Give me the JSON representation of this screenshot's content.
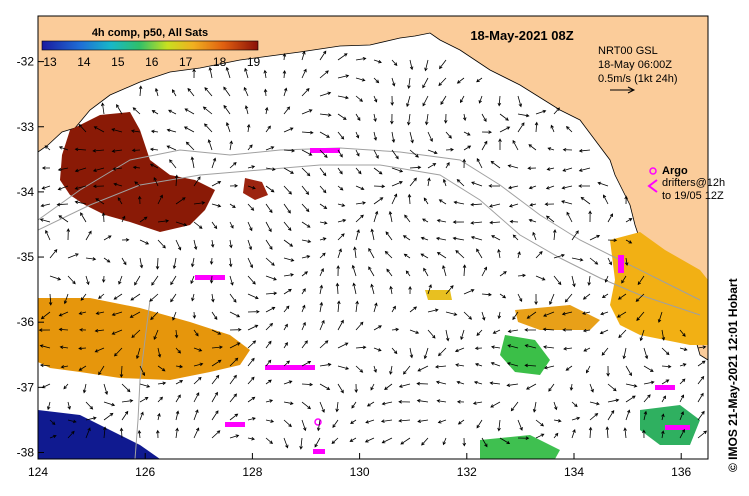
{
  "title": "18-May-2021 08Z",
  "colorbar": {
    "title": "4h comp, p50, All Sats",
    "ticks": [
      "13",
      "14",
      "15",
      "16",
      "17",
      "18",
      "19"
    ]
  },
  "legend": {
    "nrt": "NRT00 GSL",
    "nrt_time": "18-May 06:00Z",
    "scale": "0.5m/s (1kt 24h)",
    "argo": "Argo",
    "drifters": "drifters@12h",
    "drifters_to": "to 19/05 12Z"
  },
  "credit": "© IMOS 21-May-2021 12:01 Hobart",
  "axes": {
    "x_ticks": [
      "124",
      "126",
      "128",
      "130",
      "132",
      "134",
      "136"
    ],
    "y_ticks": [
      "-32",
      "-33",
      "-34",
      "-35",
      "-36",
      "-37",
      "-38"
    ],
    "x_range": [
      124,
      136.5
    ],
    "y_range": [
      -31.3,
      -38.1
    ]
  },
  "colors": {
    "land": "#fbcc9a",
    "argo": "#ff00ff"
  }
}
